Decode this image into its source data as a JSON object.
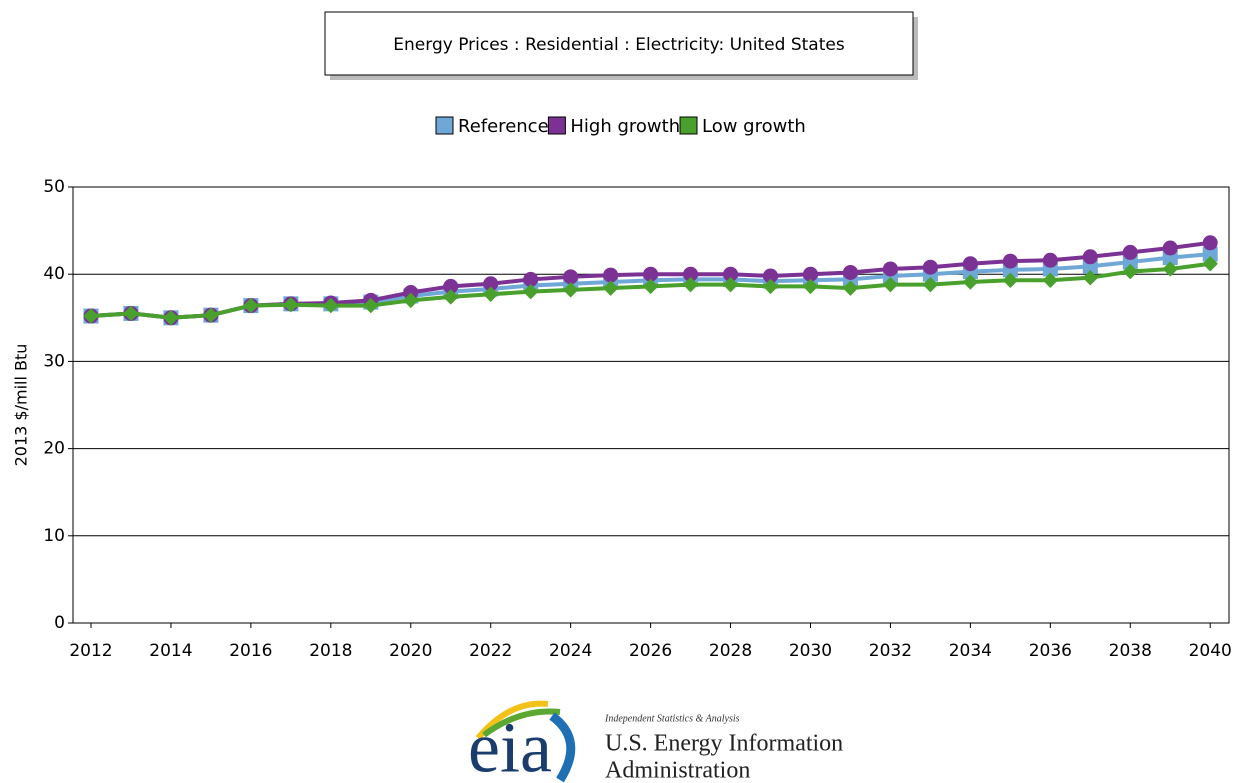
{
  "chart_data": {
    "type": "line",
    "title": "Energy Prices : Residential : Electricity: United States",
    "ylabel": "2013 $/mill Btu",
    "x": [
      2012,
      2013,
      2014,
      2015,
      2016,
      2017,
      2018,
      2019,
      2020,
      2021,
      2022,
      2023,
      2024,
      2025,
      2026,
      2027,
      2028,
      2029,
      2030,
      2031,
      2032,
      2033,
      2034,
      2035,
      2036,
      2037,
      2038,
      2039,
      2040
    ],
    "series": [
      {
        "name": "Reference",
        "color": "#6fa8d6",
        "marker": "square",
        "values": [
          35.2,
          35.5,
          35.0,
          35.3,
          36.4,
          36.6,
          36.6,
          36.8,
          37.5,
          38.0,
          38.3,
          38.7,
          38.9,
          39.1,
          39.3,
          39.4,
          39.4,
          39.2,
          39.3,
          39.4,
          39.8,
          40.0,
          40.3,
          40.5,
          40.6,
          40.9,
          41.4,
          41.9,
          42.3
        ]
      },
      {
        "name": "High growth",
        "color": "#7b3294",
        "marker": "circle",
        "values": [
          35.2,
          35.5,
          35.0,
          35.3,
          36.4,
          36.6,
          36.7,
          37.0,
          37.9,
          38.6,
          38.9,
          39.4,
          39.7,
          39.9,
          40.0,
          40.0,
          40.0,
          39.8,
          40.0,
          40.2,
          40.6,
          40.8,
          41.2,
          41.5,
          41.6,
          42.0,
          42.5,
          43.0,
          43.6
        ]
      },
      {
        "name": "Low growth",
        "color": "#4aa02c",
        "marker": "diamond",
        "values": [
          35.2,
          35.5,
          35.0,
          35.3,
          36.4,
          36.5,
          36.4,
          36.4,
          37.0,
          37.4,
          37.7,
          38.0,
          38.2,
          38.4,
          38.6,
          38.8,
          38.8,
          38.6,
          38.6,
          38.4,
          38.8,
          38.8,
          39.1,
          39.3,
          39.3,
          39.6,
          40.3,
          40.6,
          41.2
        ]
      }
    ],
    "xlim": [
      2011.55,
      2040.47
    ],
    "xticks": [
      2012,
      2014,
      2016,
      2018,
      2020,
      2022,
      2024,
      2026,
      2028,
      2030,
      2032,
      2034,
      2036,
      2038,
      2040
    ],
    "ylim": [
      0,
      50
    ],
    "yticks": [
      0,
      10,
      20,
      30,
      40,
      50
    ],
    "grid": true,
    "legend": "top"
  },
  "logo": {
    "tagline": "Independent Statistics & Analysis",
    "mark": "eia",
    "line1": "U.S. Energy Information",
    "line2": "Administration"
  }
}
